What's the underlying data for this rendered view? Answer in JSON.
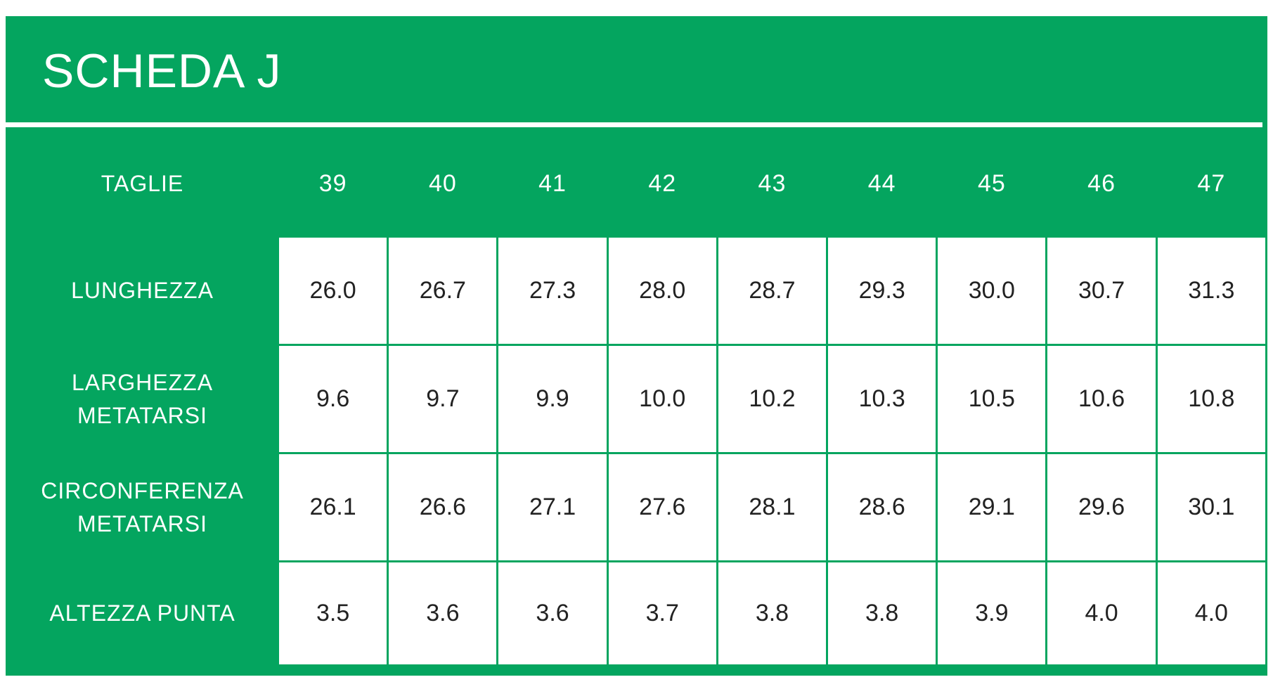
{
  "title": "SCHEDA J",
  "table": {
    "header": [
      "TAGLIE",
      "39",
      "40",
      "41",
      "42",
      "43",
      "44",
      "45",
      "46",
      "47"
    ],
    "rows": [
      [
        "LUNGHEZZA",
        "26.0",
        "26.7",
        "27.3",
        "28.0",
        "28.7",
        "29.3",
        "30.0",
        "30.7",
        "31.3"
      ],
      [
        "LARGHEZZA\nMETATARSI",
        "9.6",
        "9.7",
        "9.9",
        "10.0",
        "10.2",
        "10.3",
        "10.5",
        "10.6",
        "10.8"
      ],
      [
        "CIRCONFERENZA\nMETATARSI",
        "26.1",
        "26.6",
        "27.1",
        "27.6",
        "28.1",
        "28.6",
        "29.1",
        "29.6",
        "30.1"
      ],
      [
        "ALTEZZA PUNTA",
        "3.5",
        "3.6",
        "3.6",
        "3.7",
        "3.8",
        "3.8",
        "3.9",
        "4.0",
        "4.0"
      ]
    ]
  }
}
